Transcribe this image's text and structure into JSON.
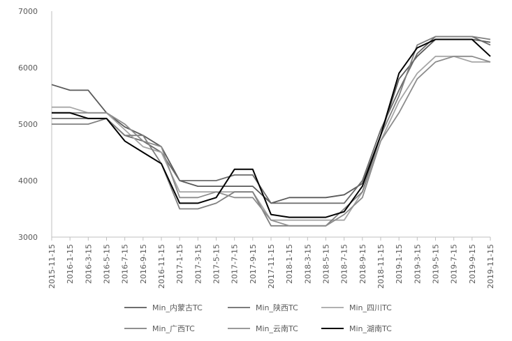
{
  "chart_data": {
    "type": "line",
    "title": "",
    "xlabel": "",
    "ylabel": "",
    "ylim": [
      3000,
      7000
    ],
    "yticks": [
      3000,
      4000,
      5000,
      6000,
      7000
    ],
    "grid": false,
    "legend_position": "bottom",
    "x_tick_labels": [
      "2015-11-15",
      "2016-1-15",
      "2016-3-15",
      "2016-5-15",
      "2016-7-15",
      "2016-9-15",
      "2016-11-15",
      "2017-1-15",
      "2017-3-15",
      "2017-5-15",
      "2017-7-15",
      "2017-9-15",
      "2017-11-15",
      "2018-1-15",
      "2018-3-15",
      "2018-5-15",
      "2018-7-15",
      "2018-9-15",
      "2018-11-15",
      "2019-1-15",
      "2019-3-15",
      "2019-5-15",
      "2019-7-15",
      "2019-9-15",
      "2019-11-15"
    ],
    "series": [
      {
        "name": "Min_内蒙古TC",
        "color": "#5a5a5a",
        "width": 1.8,
        "values": [
          5700,
          5600,
          5600,
          5200,
          4950,
          4800,
          4600,
          4000,
          3900,
          3900,
          3900,
          3900,
          3600,
          3700,
          3700,
          3700,
          3750,
          3950,
          4800,
          5800,
          6200,
          6500,
          6500,
          6500,
          6450
        ]
      },
      {
        "name": "Min_陕西TC",
        "color": "#6a6a6a",
        "width": 1.8,
        "values": [
          5100,
          5100,
          5100,
          5100,
          4800,
          4700,
          4500,
          4000,
          4000,
          4000,
          4100,
          4100,
          3600,
          3600,
          3600,
          3600,
          3600,
          4000,
          4900,
          5600,
          6250,
          6550,
          6550,
          6550,
          6400
        ]
      },
      {
        "name": "Min_四川TC",
        "color": "#a6a6a6",
        "width": 1.8,
        "values": [
          5300,
          5300,
          5200,
          5200,
          4900,
          4600,
          4500,
          3800,
          3800,
          3800,
          3800,
          3800,
          3300,
          3300,
          3300,
          3300,
          3300,
          3800,
          4700,
          5400,
          5900,
          6200,
          6200,
          6100,
          6100
        ]
      },
      {
        "name": "Min_广西TC",
        "color": "#808080",
        "width": 1.8,
        "values": [
          5000,
          5000,
          5000,
          5100,
          4800,
          4800,
          4300,
          3500,
          3500,
          3600,
          3800,
          3800,
          3200,
          3200,
          3200,
          3200,
          3500,
          3800,
          4800,
          5500,
          6400,
          6550,
          6550,
          6550,
          6500
        ]
      },
      {
        "name": "Min_云南TC",
        "color": "#8c8c8c",
        "width": 1.8,
        "values": [
          5200,
          5200,
          5200,
          5200,
          5000,
          4700,
          4600,
          3700,
          3700,
          3800,
          3700,
          3700,
          3300,
          3200,
          3200,
          3200,
          3400,
          3700,
          4700,
          5200,
          5800,
          6100,
          6200,
          6200,
          6100
        ]
      },
      {
        "name": "Min_湖南TC",
        "color": "#000000",
        "width": 2.0,
        "values": [
          5200,
          5200,
          5100,
          5100,
          4700,
          4500,
          4300,
          3600,
          3600,
          3700,
          4200,
          4200,
          3400,
          3350,
          3350,
          3350,
          3450,
          3900,
          4800,
          5900,
          6350,
          6500,
          6500,
          6500,
          6200
        ]
      }
    ]
  }
}
